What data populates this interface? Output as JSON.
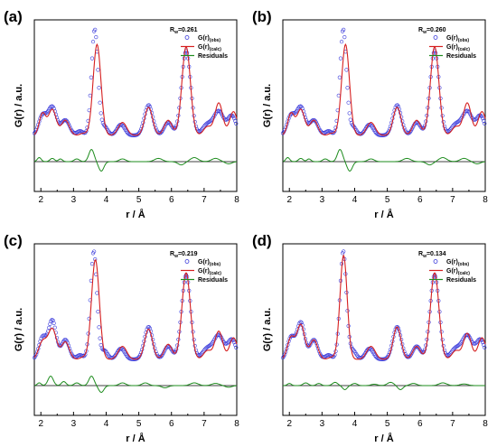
{
  "chart_data": [
    {
      "type": "line",
      "panel_label": "(a)",
      "rw_label": "R",
      "rw_sub": "w",
      "rw_value": "=0.261",
      "xlabel": "r / Å",
      "ylabel": "G(r) / a.u.",
      "xlim": [
        1.8,
        8.0
      ],
      "xticks": [
        "2",
        "3",
        "4",
        "5",
        "6",
        "7",
        "8"
      ],
      "legend": [
        {
          "key": "obs",
          "main": "G(r)",
          "sub": "(obs)",
          "color": "#3a3adb",
          "style": "circle"
        },
        {
          "key": "calc",
          "main": "G(r)",
          "sub": "(calc)",
          "color": "#d62020",
          "style": "line"
        },
        {
          "key": "res",
          "main": "Residuals",
          "sub": "",
          "color": "#1e8c1e",
          "style": "line"
        }
      ],
      "obs_peaks": [
        [
          2.05,
          0.45,
          0.12
        ],
        [
          2.35,
          0.65,
          0.13
        ],
        [
          2.75,
          0.35,
          0.13
        ],
        [
          3.2,
          0.1,
          0.1
        ],
        [
          3.65,
          2.45,
          0.1
        ],
        [
          3.95,
          0.2,
          0.1
        ],
        [
          4.45,
          0.25,
          0.12
        ],
        [
          5.3,
          0.7,
          0.13
        ],
        [
          5.9,
          0.3,
          0.12
        ],
        [
          6.45,
          1.95,
          0.14
        ],
        [
          7.1,
          0.25,
          0.15
        ],
        [
          7.45,
          0.55,
          0.15
        ],
        [
          7.85,
          0.45,
          0.13
        ]
      ],
      "calc_peaks": [
        [
          2.05,
          0.5,
          0.1
        ],
        [
          2.35,
          0.6,
          0.12
        ],
        [
          2.75,
          0.35,
          0.12
        ],
        [
          3.3,
          0.05,
          0.1
        ],
        [
          3.72,
          2.1,
          0.12
        ],
        [
          4.5,
          0.3,
          0.13
        ],
        [
          5.3,
          0.65,
          0.12
        ],
        [
          5.9,
          0.35,
          0.12
        ],
        [
          6.45,
          2.05,
          0.13
        ],
        [
          7.1,
          0.2,
          0.12
        ],
        [
          7.45,
          0.75,
          0.12
        ],
        [
          7.9,
          0.55,
          0.12
        ]
      ],
      "res_peaks": [
        [
          1.95,
          0.15,
          0.06
        ],
        [
          2.35,
          0.12,
          0.07
        ],
        [
          2.6,
          0.1,
          0.06
        ],
        [
          3.1,
          0.1,
          0.08
        ],
        [
          3.55,
          0.45,
          0.08
        ],
        [
          3.85,
          -0.35,
          0.08
        ],
        [
          4.5,
          0.1,
          0.1
        ],
        [
          5.6,
          0.12,
          0.12
        ],
        [
          6.3,
          -0.12,
          0.1
        ],
        [
          6.7,
          0.15,
          0.12
        ],
        [
          7.35,
          0.12,
          0.12
        ],
        [
          7.75,
          -0.08,
          0.1
        ]
      ]
    },
    {
      "type": "line",
      "panel_label": "(b)",
      "rw_label": "R",
      "rw_sub": "w",
      "rw_value": "=0.260",
      "xlabel": "r / Å",
      "ylabel": "G(r) / a.u.",
      "xlim": [
        1.8,
        8.0
      ],
      "xticks": [
        "2",
        "3",
        "4",
        "5",
        "6",
        "7",
        "8"
      ],
      "legend": [
        {
          "key": "obs",
          "main": "G(r)",
          "sub": "(obs)",
          "color": "#3a3adb",
          "style": "circle"
        },
        {
          "key": "calc",
          "main": "G(r)",
          "sub": "(calc)",
          "color": "#d62020",
          "style": "line"
        },
        {
          "key": "res",
          "main": "Residuals",
          "sub": "",
          "color": "#1e8c1e",
          "style": "line"
        }
      ],
      "obs_peaks": [
        [
          2.05,
          0.45,
          0.12
        ],
        [
          2.35,
          0.65,
          0.13
        ],
        [
          2.75,
          0.35,
          0.13
        ],
        [
          3.2,
          0.1,
          0.1
        ],
        [
          3.65,
          2.45,
          0.1
        ],
        [
          3.95,
          0.2,
          0.1
        ],
        [
          4.45,
          0.25,
          0.12
        ],
        [
          5.3,
          0.7,
          0.13
        ],
        [
          5.9,
          0.3,
          0.12
        ],
        [
          6.45,
          1.95,
          0.14
        ],
        [
          7.1,
          0.25,
          0.15
        ],
        [
          7.45,
          0.55,
          0.15
        ],
        [
          7.85,
          0.45,
          0.13
        ]
      ],
      "calc_peaks": [
        [
          2.05,
          0.5,
          0.1
        ],
        [
          2.35,
          0.6,
          0.12
        ],
        [
          2.75,
          0.35,
          0.12
        ],
        [
          3.3,
          0.05,
          0.1
        ],
        [
          3.72,
          2.1,
          0.12
        ],
        [
          4.5,
          0.3,
          0.13
        ],
        [
          5.3,
          0.65,
          0.12
        ],
        [
          5.9,
          0.35,
          0.12
        ],
        [
          6.45,
          2.05,
          0.13
        ],
        [
          7.1,
          0.2,
          0.12
        ],
        [
          7.45,
          0.75,
          0.12
        ],
        [
          7.9,
          0.55,
          0.12
        ]
      ],
      "res_peaks": [
        [
          1.95,
          0.15,
          0.06
        ],
        [
          2.35,
          0.12,
          0.07
        ],
        [
          2.6,
          0.1,
          0.06
        ],
        [
          3.1,
          0.1,
          0.08
        ],
        [
          3.55,
          0.45,
          0.08
        ],
        [
          3.85,
          -0.35,
          0.08
        ],
        [
          4.5,
          0.1,
          0.1
        ],
        [
          5.6,
          0.12,
          0.12
        ],
        [
          6.3,
          -0.12,
          0.1
        ],
        [
          6.7,
          0.15,
          0.12
        ],
        [
          7.35,
          0.12,
          0.12
        ],
        [
          7.75,
          -0.08,
          0.1
        ]
      ]
    },
    {
      "type": "line",
      "panel_label": "(c)",
      "rw_label": "R",
      "rw_sub": "w",
      "rw_value": "=0.219",
      "xlabel": "r / Å",
      "ylabel": "G(r) / a.u.",
      "xlim": [
        1.8,
        8.0
      ],
      "xticks": [
        "2",
        "3",
        "4",
        "5",
        "6",
        "7",
        "8"
      ],
      "legend": [
        {
          "key": "obs",
          "main": "G(r)",
          "sub": "(obs)",
          "color": "#3a3adb",
          "style": "circle"
        },
        {
          "key": "calc",
          "main": "G(r)",
          "sub": "(calc)",
          "color": "#d62020",
          "style": "line"
        },
        {
          "key": "res",
          "main": "Residuals",
          "sub": "",
          "color": "#1e8c1e",
          "style": "line"
        }
      ],
      "obs_peaks": [
        [
          2.05,
          0.5,
          0.11
        ],
        [
          2.35,
          0.9,
          0.12
        ],
        [
          2.75,
          0.45,
          0.12
        ],
        [
          3.2,
          0.1,
          0.1
        ],
        [
          3.62,
          2.5,
          0.1
        ],
        [
          3.95,
          0.2,
          0.1
        ],
        [
          4.45,
          0.25,
          0.12
        ],
        [
          5.3,
          0.75,
          0.13
        ],
        [
          5.9,
          0.3,
          0.12
        ],
        [
          6.45,
          1.95,
          0.14
        ],
        [
          7.1,
          0.25,
          0.15
        ],
        [
          7.45,
          0.55,
          0.15
        ],
        [
          7.85,
          0.45,
          0.13
        ]
      ],
      "calc_peaks": [
        [
          2.05,
          0.4,
          0.12
        ],
        [
          2.35,
          0.7,
          0.13
        ],
        [
          2.75,
          0.4,
          0.12
        ],
        [
          3.3,
          0.05,
          0.1
        ],
        [
          3.67,
          2.3,
          0.12
        ],
        [
          4.5,
          0.3,
          0.13
        ],
        [
          5.3,
          0.7,
          0.12
        ],
        [
          5.9,
          0.35,
          0.12
        ],
        [
          6.45,
          2.0,
          0.13
        ],
        [
          7.1,
          0.2,
          0.12
        ],
        [
          7.45,
          0.65,
          0.12
        ],
        [
          7.9,
          0.5,
          0.12
        ]
      ],
      "res_peaks": [
        [
          1.95,
          0.1,
          0.06
        ],
        [
          2.3,
          0.35,
          0.08
        ],
        [
          2.7,
          0.15,
          0.07
        ],
        [
          3.1,
          0.1,
          0.08
        ],
        [
          3.55,
          0.35,
          0.08
        ],
        [
          3.85,
          -0.25,
          0.08
        ],
        [
          4.5,
          0.1,
          0.1
        ],
        [
          5.2,
          0.1,
          0.1
        ],
        [
          5.8,
          -0.08,
          0.1
        ],
        [
          6.7,
          0.1,
          0.12
        ],
        [
          7.35,
          0.08,
          0.12
        ],
        [
          7.75,
          -0.06,
          0.1
        ]
      ]
    },
    {
      "type": "line",
      "panel_label": "(d)",
      "rw_label": "R",
      "rw_sub": "w",
      "rw_value": "=0.134",
      "xlabel": "r / Å",
      "ylabel": "G(r) / a.u.",
      "xlim": [
        1.8,
        8.0
      ],
      "xticks": [
        "2",
        "3",
        "4",
        "5",
        "6",
        "7",
        "8"
      ],
      "legend": [
        {
          "key": "obs",
          "main": "G(r)",
          "sub": "(obs)",
          "color": "#3a3adb",
          "style": "circle"
        },
        {
          "key": "calc",
          "main": "G(r)",
          "sub": "(calc)",
          "color": "#d62020",
          "style": "line"
        },
        {
          "key": "res",
          "main": "Residuals",
          "sub": "",
          "color": "#1e8c1e",
          "style": "line"
        }
      ],
      "obs_peaks": [
        [
          2.05,
          0.5,
          0.11
        ],
        [
          2.35,
          0.85,
          0.12
        ],
        [
          2.75,
          0.45,
          0.12
        ],
        [
          3.2,
          0.1,
          0.1
        ],
        [
          3.65,
          2.5,
          0.1
        ],
        [
          3.95,
          0.2,
          0.1
        ],
        [
          4.45,
          0.25,
          0.12
        ],
        [
          5.3,
          0.75,
          0.13
        ],
        [
          5.9,
          0.3,
          0.12
        ],
        [
          6.45,
          1.95,
          0.14
        ],
        [
          7.1,
          0.25,
          0.15
        ],
        [
          7.45,
          0.55,
          0.15
        ],
        [
          7.85,
          0.45,
          0.13
        ]
      ],
      "calc_peaks": [
        [
          2.05,
          0.5,
          0.11
        ],
        [
          2.35,
          0.8,
          0.12
        ],
        [
          2.75,
          0.45,
          0.12
        ],
        [
          3.3,
          0.05,
          0.1
        ],
        [
          3.66,
          2.4,
          0.11
        ],
        [
          4.5,
          0.3,
          0.13
        ],
        [
          5.3,
          0.75,
          0.12
        ],
        [
          5.9,
          0.3,
          0.12
        ],
        [
          6.45,
          2.0,
          0.13
        ],
        [
          7.1,
          0.2,
          0.12
        ],
        [
          7.45,
          0.6,
          0.12
        ],
        [
          7.9,
          0.5,
          0.12
        ]
      ],
      "res_peaks": [
        [
          2.0,
          0.08,
          0.06
        ],
        [
          2.5,
          0.1,
          0.08
        ],
        [
          2.9,
          0.08,
          0.07
        ],
        [
          3.4,
          0.12,
          0.08
        ],
        [
          3.7,
          -0.15,
          0.07
        ],
        [
          4.0,
          0.08,
          0.08
        ],
        [
          4.6,
          0.05,
          0.1
        ],
        [
          5.1,
          0.12,
          0.1
        ],
        [
          5.4,
          -0.15,
          0.08
        ],
        [
          5.8,
          0.08,
          0.1
        ],
        [
          6.7,
          0.1,
          0.12
        ],
        [
          7.35,
          0.06,
          0.12
        ]
      ]
    }
  ]
}
